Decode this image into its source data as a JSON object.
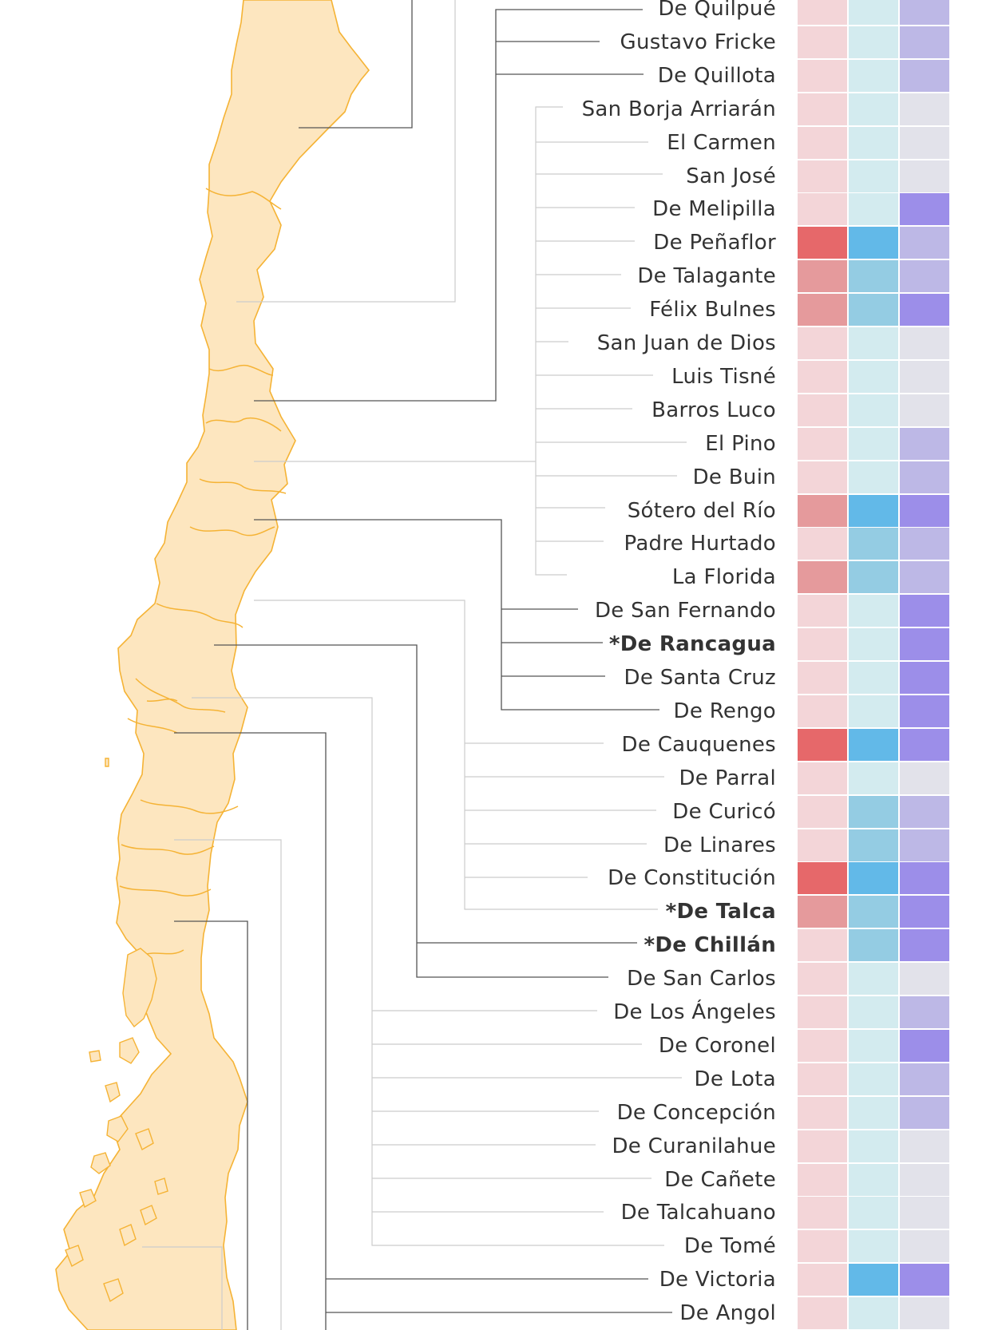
{
  "colors": {
    "map_fill": "#fde6bf",
    "map_stroke": "#f5b335",
    "leader_dark": "#555555",
    "leader_light": "#cccccc",
    "col1": {
      "low": "#f3d5d8",
      "mid": "#e59a9c",
      "high": "#e6686a"
    },
    "col2": {
      "low": "#d3ebef",
      "mid": "#94cce3",
      "high": "#62b9e8"
    },
    "col3": {
      "none": "#e2e2ea",
      "low": "#bdb8e6",
      "high": "#9c8ee9"
    }
  },
  "hospitals": [
    {
      "name": "De Quilpué",
      "bold": false,
      "c1": "low",
      "c2": "low",
      "c3": "low",
      "group": "valpo"
    },
    {
      "name": "Gustavo Fricke",
      "bold": false,
      "c1": "low",
      "c2": "low",
      "c3": "low",
      "group": "valpo"
    },
    {
      "name": "De Quillota",
      "bold": false,
      "c1": "low",
      "c2": "low",
      "c3": "low",
      "group": "valpo"
    },
    {
      "name": "San Borja Arriarán",
      "bold": false,
      "c1": "low",
      "c2": "low",
      "c3": "none",
      "group": "rm"
    },
    {
      "name": "El Carmen",
      "bold": false,
      "c1": "low",
      "c2": "low",
      "c3": "none",
      "group": "rm"
    },
    {
      "name": "San José",
      "bold": false,
      "c1": "low",
      "c2": "low",
      "c3": "none",
      "group": "rm"
    },
    {
      "name": "De Melipilla",
      "bold": false,
      "c1": "low",
      "c2": "low",
      "c3": "high",
      "group": "rm"
    },
    {
      "name": "De Peñaflor",
      "bold": false,
      "c1": "high",
      "c2": "high",
      "c3": "low",
      "group": "rm"
    },
    {
      "name": "De Talagante",
      "bold": false,
      "c1": "mid",
      "c2": "mid",
      "c3": "low",
      "group": "rm"
    },
    {
      "name": "Félix Bulnes",
      "bold": false,
      "c1": "mid",
      "c2": "mid",
      "c3": "high",
      "group": "rm"
    },
    {
      "name": "San Juan de Dios",
      "bold": false,
      "c1": "low",
      "c2": "low",
      "c3": "none",
      "group": "rm"
    },
    {
      "name": "Luis Tisné",
      "bold": false,
      "c1": "low",
      "c2": "low",
      "c3": "none",
      "group": "rm"
    },
    {
      "name": "Barros Luco",
      "bold": false,
      "c1": "low",
      "c2": "low",
      "c3": "none",
      "group": "rm"
    },
    {
      "name": "El Pino",
      "bold": false,
      "c1": "low",
      "c2": "low",
      "c3": "low",
      "group": "rm"
    },
    {
      "name": "De Buin",
      "bold": false,
      "c1": "low",
      "c2": "low",
      "c3": "low",
      "group": "rm"
    },
    {
      "name": "Sótero del Río",
      "bold": false,
      "c1": "mid",
      "c2": "high",
      "c3": "high",
      "group": "rm"
    },
    {
      "name": "Padre Hurtado",
      "bold": false,
      "c1": "low",
      "c2": "mid",
      "c3": "low",
      "group": "rm"
    },
    {
      "name": "La Florida",
      "bold": false,
      "c1": "mid",
      "c2": "mid",
      "c3": "low",
      "group": "rm"
    },
    {
      "name": "De San Fernando",
      "bold": false,
      "c1": "low",
      "c2": "low",
      "c3": "high",
      "group": "ohiggins"
    },
    {
      "name": "*De Rancagua",
      "bold": true,
      "c1": "low",
      "c2": "low",
      "c3": "high",
      "group": "ohiggins"
    },
    {
      "name": "De Santa Cruz",
      "bold": false,
      "c1": "low",
      "c2": "low",
      "c3": "high",
      "group": "ohiggins"
    },
    {
      "name": "De Rengo",
      "bold": false,
      "c1": "low",
      "c2": "low",
      "c3": "high",
      "group": "ohiggins"
    },
    {
      "name": "De Cauquenes",
      "bold": false,
      "c1": "high",
      "c2": "high",
      "c3": "high",
      "group": "maule"
    },
    {
      "name": "De Parral",
      "bold": false,
      "c1": "low",
      "c2": "low",
      "c3": "none",
      "group": "maule"
    },
    {
      "name": "De Curicó",
      "bold": false,
      "c1": "low",
      "c2": "mid",
      "c3": "low",
      "group": "maule"
    },
    {
      "name": "De Linares",
      "bold": false,
      "c1": "low",
      "c2": "mid",
      "c3": "low",
      "group": "maule"
    },
    {
      "name": "De Constitución",
      "bold": false,
      "c1": "high",
      "c2": "high",
      "c3": "high",
      "group": "maule"
    },
    {
      "name": "*De Talca",
      "bold": true,
      "c1": "mid",
      "c2": "mid",
      "c3": "high",
      "group": "maule"
    },
    {
      "name": "*De Chillán",
      "bold": true,
      "c1": "low",
      "c2": "mid",
      "c3": "high",
      "group": "nuble"
    },
    {
      "name": "De San Carlos",
      "bold": false,
      "c1": "low",
      "c2": "low",
      "c3": "none",
      "group": "nuble"
    },
    {
      "name": "De Los Ángeles",
      "bold": false,
      "c1": "low",
      "c2": "low",
      "c3": "low",
      "group": "biobio"
    },
    {
      "name": "De Coronel",
      "bold": false,
      "c1": "low",
      "c2": "low",
      "c3": "high",
      "group": "biobio"
    },
    {
      "name": "De Lota",
      "bold": false,
      "c1": "low",
      "c2": "low",
      "c3": "low",
      "group": "biobio"
    },
    {
      "name": "De Concepción",
      "bold": false,
      "c1": "low",
      "c2": "low",
      "c3": "low",
      "group": "biobio"
    },
    {
      "name": "De Curanilahue",
      "bold": false,
      "c1": "low",
      "c2": "low",
      "c3": "none",
      "group": "biobio"
    },
    {
      "name": "De Cañete",
      "bold": false,
      "c1": "low",
      "c2": "low",
      "c3": "none",
      "group": "biobio"
    },
    {
      "name": "De Talcahuano",
      "bold": false,
      "c1": "low",
      "c2": "low",
      "c3": "none",
      "group": "biobio"
    },
    {
      "name": "De Tomé",
      "bold": false,
      "c1": "low",
      "c2": "low",
      "c3": "none",
      "group": "biobio"
    },
    {
      "name": "De Victoria",
      "bold": false,
      "c1": "low",
      "c2": "high",
      "c3": "high",
      "group": "araucania"
    },
    {
      "name": "De Angol",
      "bold": false,
      "c1": "low",
      "c2": "low",
      "c3": "none",
      "group": "araucania"
    }
  ]
}
